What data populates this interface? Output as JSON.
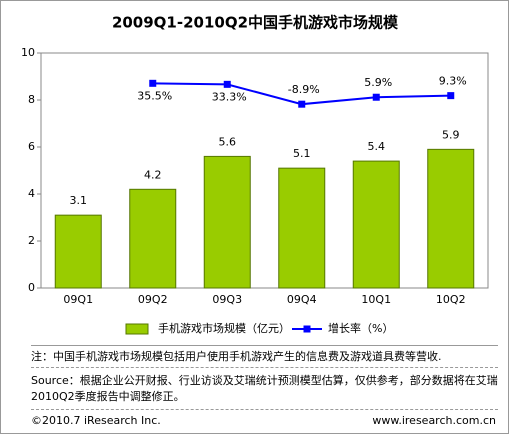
{
  "chart_data": {
    "type": "bar",
    "title": "2009Q1-2010Q2中国手机游戏市场规模",
    "categories": [
      "09Q1",
      "09Q2",
      "09Q3",
      "09Q4",
      "10Q1",
      "10Q2"
    ],
    "series": [
      {
        "name": "手机游戏市场规模（亿元）",
        "type": "bar",
        "color": "#99cc00",
        "values": [
          3.1,
          4.2,
          5.6,
          5.1,
          5.4,
          5.9
        ]
      },
      {
        "name": "增长率（%）",
        "type": "line",
        "axis": "y2",
        "color": "#0000ff",
        "values": [
          null,
          35.5,
          33.3,
          -8.9,
          5.9,
          9.3
        ],
        "value_labels": [
          null,
          "35.5%",
          "33.3%",
          "-8.9%",
          "5.9%",
          "9.3%"
        ]
      }
    ],
    "ylim": [
      0,
      10
    ],
    "yticks": [
      0,
      2,
      4,
      6,
      8,
      10
    ],
    "y2lim": [
      -400,
      100
    ],
    "grid": false
  },
  "note": "注：中国手机游戏市场规模包括用户使用手机游戏产生的信息费及游戏道具费等营收.",
  "source": "Source：根据企业公开财报、行业访谈及艾瑞统计预测模型估算，仅供参考，部分数据将在艾瑞2010Q2季度报告中调整修正。",
  "copyright": "©2010.7 iResearch Inc.",
  "website": "www.iresearch.com.cn"
}
